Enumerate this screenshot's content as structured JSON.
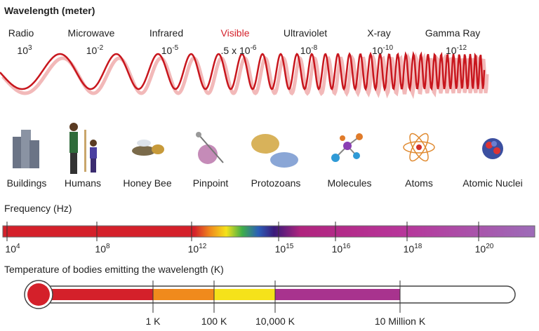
{
  "header": {
    "title": "Wavelength (meter)"
  },
  "bands": [
    {
      "name": "Radio",
      "base": "10",
      "exp": "3"
    },
    {
      "name": "Microwave",
      "base": "10",
      "exp": "-2"
    },
    {
      "name": "Infrared",
      "base": "10",
      "exp": "-5"
    },
    {
      "name": "Visible",
      "base": ".5 x 10",
      "exp": "-6"
    },
    {
      "name": "Ultraviolet",
      "base": "10",
      "exp": "-8"
    },
    {
      "name": "X-ray",
      "base": "10",
      "exp": "-10"
    },
    {
      "name": "Gamma Ray",
      "base": "10",
      "exp": "-12"
    }
  ],
  "objects": [
    "Buildings",
    "Humans",
    "Honey Bee",
    "Pinpoint",
    "Protozoans",
    "Molecules",
    "Atoms",
    "Atomic Nuclei"
  ],
  "frequency": {
    "title": "Frequency (Hz)",
    "ticks": [
      {
        "base": "10",
        "exp": "4"
      },
      {
        "base": "10",
        "exp": "8"
      },
      {
        "base": "10",
        "exp": "12"
      },
      {
        "base": "10",
        "exp": "15"
      },
      {
        "base": "10",
        "exp": "16"
      },
      {
        "base": "10",
        "exp": "18"
      },
      {
        "base": "10",
        "exp": "20"
      }
    ]
  },
  "temperature": {
    "title": "Temperature of bodies emitting the wavelength (K)",
    "ticks": [
      "1 K",
      "100 K",
      "10,000 K",
      "10 Million K"
    ]
  }
}
